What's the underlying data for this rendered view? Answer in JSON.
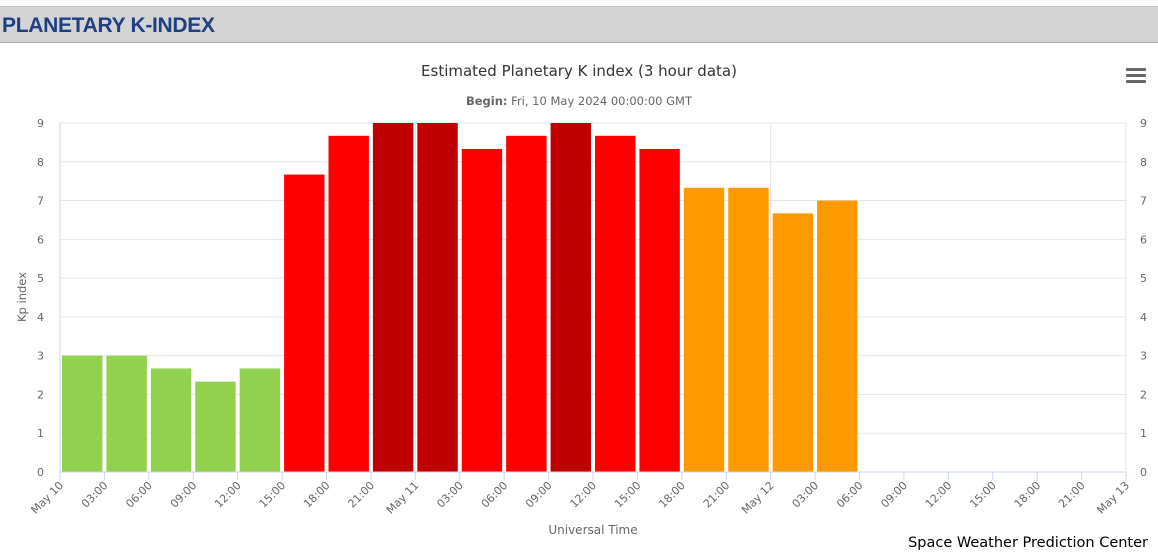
{
  "header": {
    "title": "PLANETARY K-INDEX"
  },
  "menu": {
    "icon": "hamburger-menu-icon"
  },
  "credit": "Space Weather Prediction Center",
  "chart_data": {
    "type": "bar",
    "title": "Estimated Planetary K index (3 hour data)",
    "subtitle_label": "Begin:",
    "subtitle_value": " Fri, 10 May 2024 00:00:00 GMT",
    "xlabel": "Universal Time",
    "ylabel": "Kp index",
    "ylim": [
      0,
      9
    ],
    "yticks": [
      0,
      1,
      2,
      3,
      4,
      5,
      6,
      7,
      8,
      9
    ],
    "right_axis": true,
    "grid": true,
    "x_tick_labels": [
      "May 10",
      "03:00",
      "06:00",
      "09:00",
      "12:00",
      "15:00",
      "18:00",
      "21:00",
      "May 11",
      "03:00",
      "06:00",
      "09:00",
      "12:00",
      "15:00",
      "18:00",
      "21:00",
      "May 12",
      "03:00",
      "06:00",
      "09:00",
      "12:00",
      "15:00",
      "18:00",
      "21:00",
      "May 13"
    ],
    "bars": [
      {
        "time": "2024-05-10 00:00",
        "value": 3.0,
        "color": "#92d050"
      },
      {
        "time": "2024-05-10 03:00",
        "value": 3.0,
        "color": "#92d050"
      },
      {
        "time": "2024-05-10 06:00",
        "value": 2.67,
        "color": "#92d050"
      },
      {
        "time": "2024-05-10 09:00",
        "value": 2.33,
        "color": "#92d050"
      },
      {
        "time": "2024-05-10 12:00",
        "value": 2.67,
        "color": "#92d050"
      },
      {
        "time": "2024-05-10 15:00",
        "value": 7.67,
        "color": "#ff0000"
      },
      {
        "time": "2024-05-10 18:00",
        "value": 8.67,
        "color": "#ff0000"
      },
      {
        "time": "2024-05-10 21:00",
        "value": 9.0,
        "color": "#c00000"
      },
      {
        "time": "2024-05-11 00:00",
        "value": 9.0,
        "color": "#c00000"
      },
      {
        "time": "2024-05-11 03:00",
        "value": 8.33,
        "color": "#ff0000"
      },
      {
        "time": "2024-05-11 06:00",
        "value": 8.67,
        "color": "#ff0000"
      },
      {
        "time": "2024-05-11 09:00",
        "value": 9.0,
        "color": "#c00000"
      },
      {
        "time": "2024-05-11 12:00",
        "value": 8.67,
        "color": "#ff0000"
      },
      {
        "time": "2024-05-11 15:00",
        "value": 8.33,
        "color": "#ff0000"
      },
      {
        "time": "2024-05-11 18:00",
        "value": 7.33,
        "color": "#ff9900"
      },
      {
        "time": "2024-05-11 21:00",
        "value": 7.33,
        "color": "#ff9900"
      },
      {
        "time": "2024-05-12 00:00",
        "value": 6.67,
        "color": "#ff9900"
      },
      {
        "time": "2024-05-12 03:00",
        "value": 7.0,
        "color": "#ff9900"
      }
    ]
  }
}
